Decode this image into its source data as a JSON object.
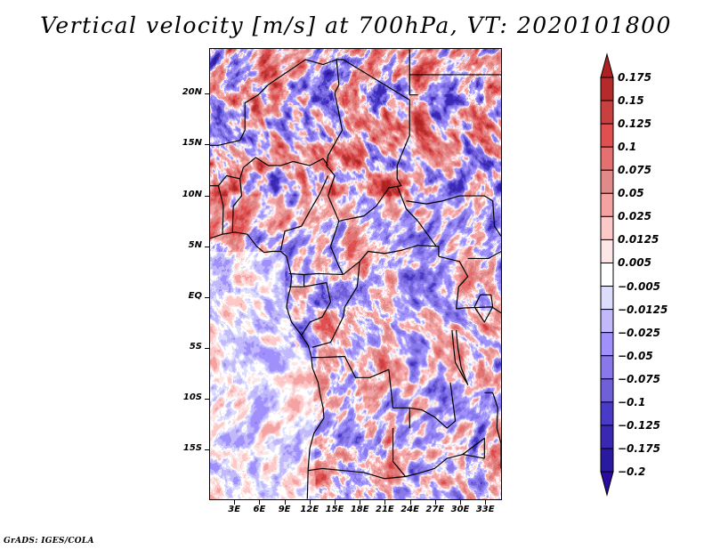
{
  "title": "Vertical velocity [m/s] at 700hPa, VT: 2020101800",
  "credit": "GrADS: IGES/COLA",
  "map": {
    "variable": "Vertical velocity",
    "units": "m/s",
    "level": "700hPa",
    "valid_time": "2020101800",
    "lon_range": [
      0,
      35
    ],
    "lat_range": [
      -20,
      24.5
    ],
    "y_ticks": [
      {
        "label": "20N",
        "lat": 20
      },
      {
        "label": "15N",
        "lat": 15
      },
      {
        "label": "10N",
        "lat": 10
      },
      {
        "label": "5N",
        "lat": 5
      },
      {
        "label": "EQ",
        "lat": 0
      },
      {
        "label": "5S",
        "lat": -5
      },
      {
        "label": "10S",
        "lat": -10
      },
      {
        "label": "15S",
        "lat": -15
      }
    ],
    "x_ticks": [
      {
        "label": "3E",
        "lon": 3
      },
      {
        "label": "6E",
        "lon": 6
      },
      {
        "label": "9E",
        "lon": 9
      },
      {
        "label": "12E",
        "lon": 12
      },
      {
        "label": "15E",
        "lon": 15
      },
      {
        "label": "18E",
        "lon": 18
      },
      {
        "label": "21E",
        "lon": 21
      },
      {
        "label": "24E",
        "lon": 24
      },
      {
        "label": "27E",
        "lon": 27
      },
      {
        "label": "30E",
        "lon": 30
      },
      {
        "label": "33E",
        "lon": 33
      }
    ]
  },
  "colorbar": {
    "labels": [
      "0.175",
      "0.15",
      "0.125",
      "0.1",
      "0.075",
      "0.05",
      "0.025",
      "0.0125",
      "0.005",
      "-0.005",
      "-0.0125",
      "-0.025",
      "-0.05",
      "-0.075",
      "-0.1",
      "-0.125",
      "-0.175",
      "-0.2"
    ],
    "colors": [
      "#b02020",
      "#b52a2a",
      "#c84040",
      "#e05050",
      "#e47070",
      "#e08a8a",
      "#f4a2a2",
      "#fcc8c8",
      "#fde6e6",
      "#ffffff",
      "#dcdcfc",
      "#c2b8fc",
      "#a090fc",
      "#8878ea",
      "#7060d8",
      "#4a3ac8",
      "#3a28b2",
      "#2a1aa0",
      "#2a0aa0"
    ],
    "extend": "both"
  }
}
